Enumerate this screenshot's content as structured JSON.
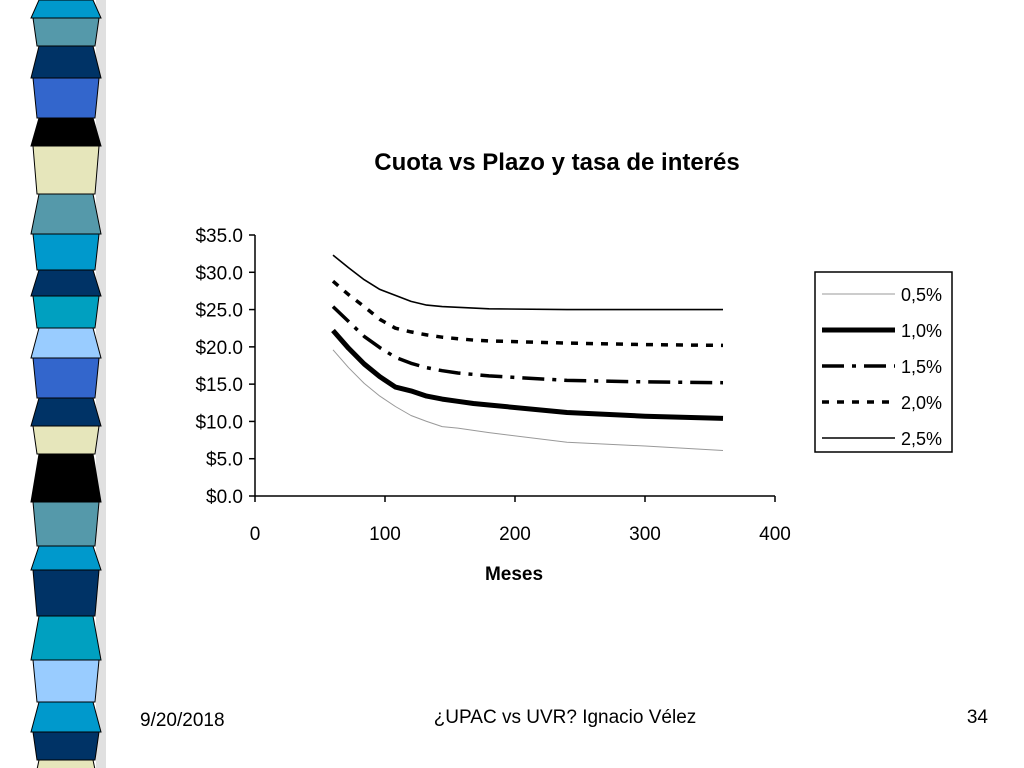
{
  "footer": {
    "date": "9/20/2018",
    "title": "¿UPAC vs UVR? Ignacio Vélez",
    "page": "34"
  },
  "colors": {
    "stripe_palette": [
      "#0099cc",
      "#5599aa",
      "#003366",
      "#3366cc",
      "#000000",
      "#e6e6bb",
      "#99ccff",
      "#00a0c0"
    ],
    "series": "#000000",
    "light_series": "#999999"
  },
  "chart_data": {
    "type": "line",
    "title": "Cuota vs Plazo y tasa de interés",
    "xlabel": "Meses",
    "ylabel": "",
    "xlim": [
      0,
      400
    ],
    "ylim": [
      0,
      35
    ],
    "x_ticks": [
      "0",
      "100",
      "200",
      "300",
      "400"
    ],
    "y_ticks": [
      "$0.0",
      "$5.0",
      "$10.0",
      "$15.0",
      "$20.0",
      "$25.0",
      "$30.0",
      "$35.0"
    ],
    "grid": false,
    "legend_position": "right",
    "x": [
      60,
      72,
      84,
      96,
      108,
      120,
      132,
      144,
      156,
      168,
      180,
      240,
      300,
      360
    ],
    "series": [
      {
        "name": "0,5%",
        "style": "thin-gray",
        "values": [
          19.6,
          17.2,
          15.1,
          13.4,
          12.0,
          10.8,
          10.0,
          9.3,
          9.1,
          8.8,
          8.5,
          7.2,
          6.7,
          6.1
        ]
      },
      {
        "name": "1,0%",
        "style": "thick",
        "values": [
          22.2,
          19.8,
          17.7,
          16.0,
          14.6,
          14.1,
          13.4,
          13.0,
          12.7,
          12.4,
          12.2,
          11.2,
          10.7,
          10.4
        ]
      },
      {
        "name": "1,5%",
        "style": "dash-dot",
        "values": [
          25.4,
          23.4,
          21.4,
          19.9,
          18.6,
          17.8,
          17.2,
          16.8,
          16.5,
          16.3,
          16.1,
          15.5,
          15.3,
          15.2
        ]
      },
      {
        "name": "2,0%",
        "style": "dotted",
        "values": [
          28.8,
          27.0,
          25.4,
          23.7,
          22.5,
          22.0,
          21.6,
          21.3,
          21.1,
          20.9,
          20.8,
          20.5,
          20.3,
          20.2
        ]
      },
      {
        "name": "2,5%",
        "style": "thin",
        "values": [
          32.3,
          30.6,
          29.0,
          27.7,
          26.9,
          26.1,
          25.6,
          25.4,
          25.3,
          25.2,
          25.1,
          25.0,
          25.0,
          25.0
        ]
      }
    ]
  }
}
